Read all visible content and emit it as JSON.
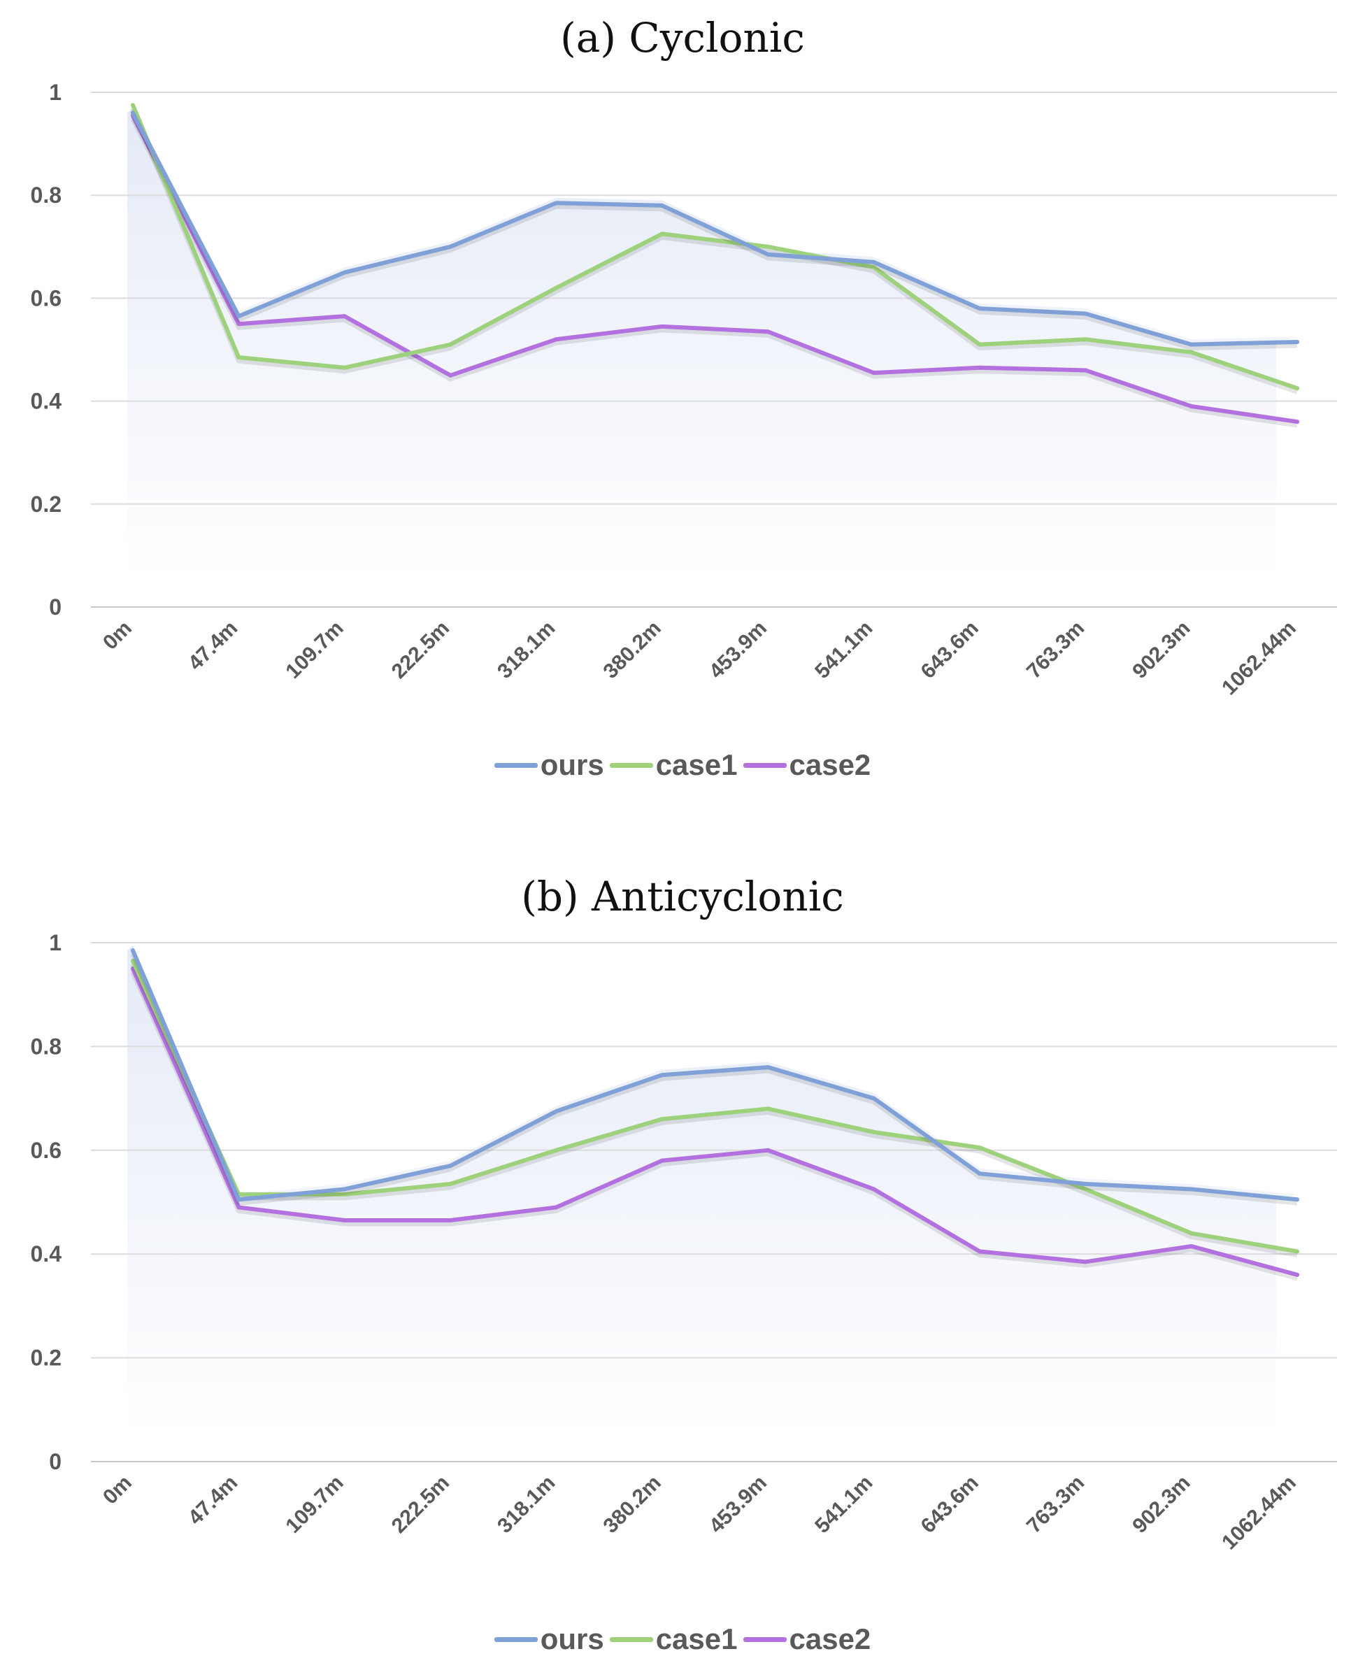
{
  "chart_data": [
    {
      "type": "line",
      "title": "(a) Cyclonic",
      "categories": [
        "0m",
        "47.4m",
        "109.7m",
        "222.5m",
        "318.1m",
        "380.2m",
        "453.9m",
        "541.1m",
        "643.6m",
        "763.3m",
        "902.3m",
        "1062.44m"
      ],
      "yticks": [
        "0",
        "0.2",
        "0.4",
        "0.6",
        "0.8",
        "1"
      ],
      "ylim": [
        0,
        1
      ],
      "grid": true,
      "legend": "bottom",
      "series": [
        {
          "name": "ours",
          "color": "#7fa1d8",
          "values": [
            0.96,
            0.565,
            0.65,
            0.7,
            0.785,
            0.78,
            0.685,
            0.67,
            0.58,
            0.57,
            0.51,
            0.515
          ]
        },
        {
          "name": "case1",
          "color": "#9ed17c",
          "values": [
            0.975,
            0.485,
            0.465,
            0.51,
            0.62,
            0.725,
            0.7,
            0.66,
            0.51,
            0.52,
            0.495,
            0.425
          ]
        },
        {
          "name": "case2",
          "color": "#b371e0",
          "values": [
            0.955,
            0.55,
            0.565,
            0.45,
            0.52,
            0.545,
            0.535,
            0.455,
            0.465,
            0.46,
            0.39,
            0.36
          ]
        }
      ]
    },
    {
      "type": "line",
      "title": "(b) Anticyclonic",
      "categories": [
        "0m",
        "47.4m",
        "109.7m",
        "222.5m",
        "318.1m",
        "380.2m",
        "453.9m",
        "541.1m",
        "643.6m",
        "763.3m",
        "902.3m",
        "1062.44m"
      ],
      "yticks": [
        "0",
        "0.2",
        "0.4",
        "0.6",
        "0.8",
        "1"
      ],
      "ylim": [
        0,
        1
      ],
      "grid": true,
      "legend": "bottom",
      "series": [
        {
          "name": "ours",
          "color": "#7fa1d8",
          "values": [
            0.985,
            0.505,
            0.525,
            0.57,
            0.675,
            0.745,
            0.76,
            0.7,
            0.555,
            0.535,
            0.525,
            0.505
          ]
        },
        {
          "name": "case1",
          "color": "#9ed17c",
          "values": [
            0.965,
            0.515,
            0.515,
            0.535,
            0.6,
            0.66,
            0.68,
            0.635,
            0.605,
            0.525,
            0.44,
            0.405
          ]
        },
        {
          "name": "case2",
          "color": "#b371e0",
          "values": [
            0.95,
            0.49,
            0.465,
            0.465,
            0.49,
            0.58,
            0.6,
            0.525,
            0.405,
            0.385,
            0.415,
            0.36
          ]
        }
      ]
    }
  ]
}
